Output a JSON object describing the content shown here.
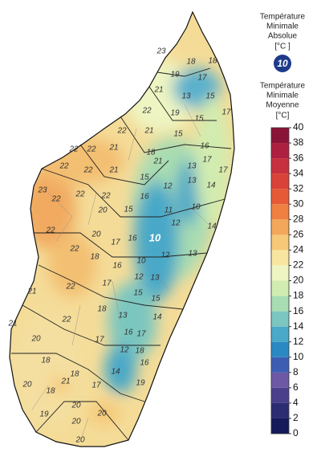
{
  "legend": {
    "absolute": {
      "title": [
        "Température",
        "Minimale",
        "Absolue",
        "[°C ]"
      ],
      "value": 10
    },
    "mean": {
      "title": [
        "Température",
        "Minimale",
        "Moyenne",
        "[°C]"
      ]
    },
    "colorbar": {
      "ticks": [
        0,
        2,
        4,
        6,
        8,
        10,
        12,
        14,
        16,
        18,
        20,
        22,
        24,
        26,
        28,
        30,
        32,
        34,
        36,
        38,
        40
      ],
      "colors": [
        "#141a5a",
        "#2c2c72",
        "#4a3f8a",
        "#6c58a4",
        "#3d5db2",
        "#2a88c2",
        "#4aa8c8",
        "#7cc6c0",
        "#a8dcb2",
        "#d2ecb0",
        "#eef5c2",
        "#f8e6a0",
        "#f6c878",
        "#f3a75a",
        "#ef8042",
        "#e65a38",
        "#d94238",
        "#c7303e",
        "#ad2040",
        "#8a1438"
      ]
    }
  },
  "map": {
    "labels": [
      23,
      18,
      18,
      19,
      17,
      21,
      13,
      15,
      22,
      19,
      15,
      17,
      22,
      21,
      15,
      16,
      22,
      22,
      21,
      18,
      17,
      21,
      13,
      17,
      22,
      22,
      21,
      15,
      12,
      13,
      14,
      23,
      22,
      22,
      22,
      16,
      11,
      10,
      20,
      15,
      12,
      14,
      22,
      10,
      20,
      17,
      16,
      22,
      18,
      10,
      12,
      13,
      16,
      12,
      13,
      22,
      17,
      15,
      15,
      21,
      18,
      13,
      14,
      21,
      22,
      16,
      17,
      20,
      17,
      12,
      18,
      18,
      16,
      14,
      18,
      21,
      20,
      18,
      17,
      19,
      20,
      19,
      20,
      20,
      20
    ]
  }
}
